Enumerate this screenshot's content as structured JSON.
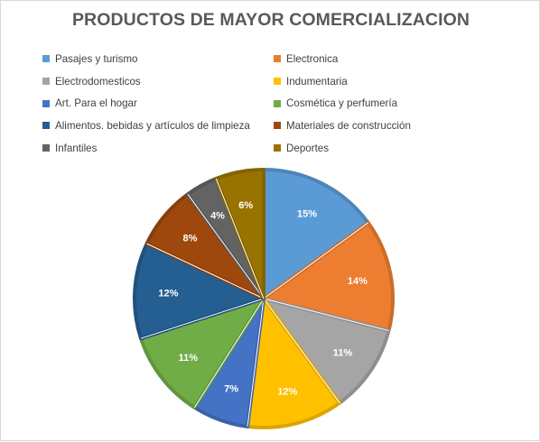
{
  "chart_data": {
    "type": "pie",
    "title": "PRODUCTOS DE MAYOR COMERCIALIZACION",
    "unit": "%",
    "legend_position": "top",
    "slices": [
      {
        "name": "Pasajes y turismo",
        "value": 15,
        "label": "15%",
        "color": "#5B9BD5"
      },
      {
        "name": "Electronica",
        "value": 14,
        "label": "14%",
        "color": "#ED7D31"
      },
      {
        "name": "Electrodomesticos",
        "value": 11,
        "label": "11%",
        "color": "#A5A5A5"
      },
      {
        "name": "Indumentaria",
        "value": 12,
        "label": "12%",
        "color": "#FFC000"
      },
      {
        "name": "Art. Para el hogar",
        "value": 7,
        "label": "7%",
        "color": "#4472C4"
      },
      {
        "name": "Cosmética y perfumería",
        "value": 11,
        "label": "11%",
        "color": "#70AD47"
      },
      {
        "name": "Alimentos. bebidas y artículos de limpieza",
        "value": 12,
        "label": "12%",
        "color": "#255E91"
      },
      {
        "name": "Materiales de construcción",
        "value": 8,
        "label": "8%",
        "color": "#9E480E"
      },
      {
        "name": "Infantiles",
        "value": 4,
        "label": "4%",
        "color": "#636363"
      },
      {
        "name": "Deportes",
        "value": 6,
        "label": "6%",
        "color": "#997300"
      }
    ]
  }
}
